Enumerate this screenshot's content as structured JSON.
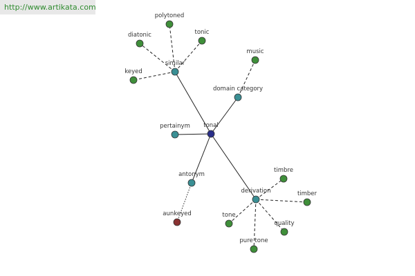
{
  "header": {
    "url": "http://www.artikata.com"
  },
  "nodes": [
    {
      "label": "tonal"
    },
    {
      "label": "similar"
    },
    {
      "label": "domain category"
    },
    {
      "label": "pertainym"
    },
    {
      "label": "antonym"
    },
    {
      "label": "derivation"
    },
    {
      "label": "polytoned"
    },
    {
      "label": "diatonic"
    },
    {
      "label": "tonic"
    },
    {
      "label": "keyed"
    },
    {
      "label": "music"
    },
    {
      "label": "aunkeyed"
    },
    {
      "label": "timbre"
    },
    {
      "label": "timber"
    },
    {
      "label": "quality"
    },
    {
      "label": "pure tone"
    },
    {
      "label": "tone"
    }
  ]
}
